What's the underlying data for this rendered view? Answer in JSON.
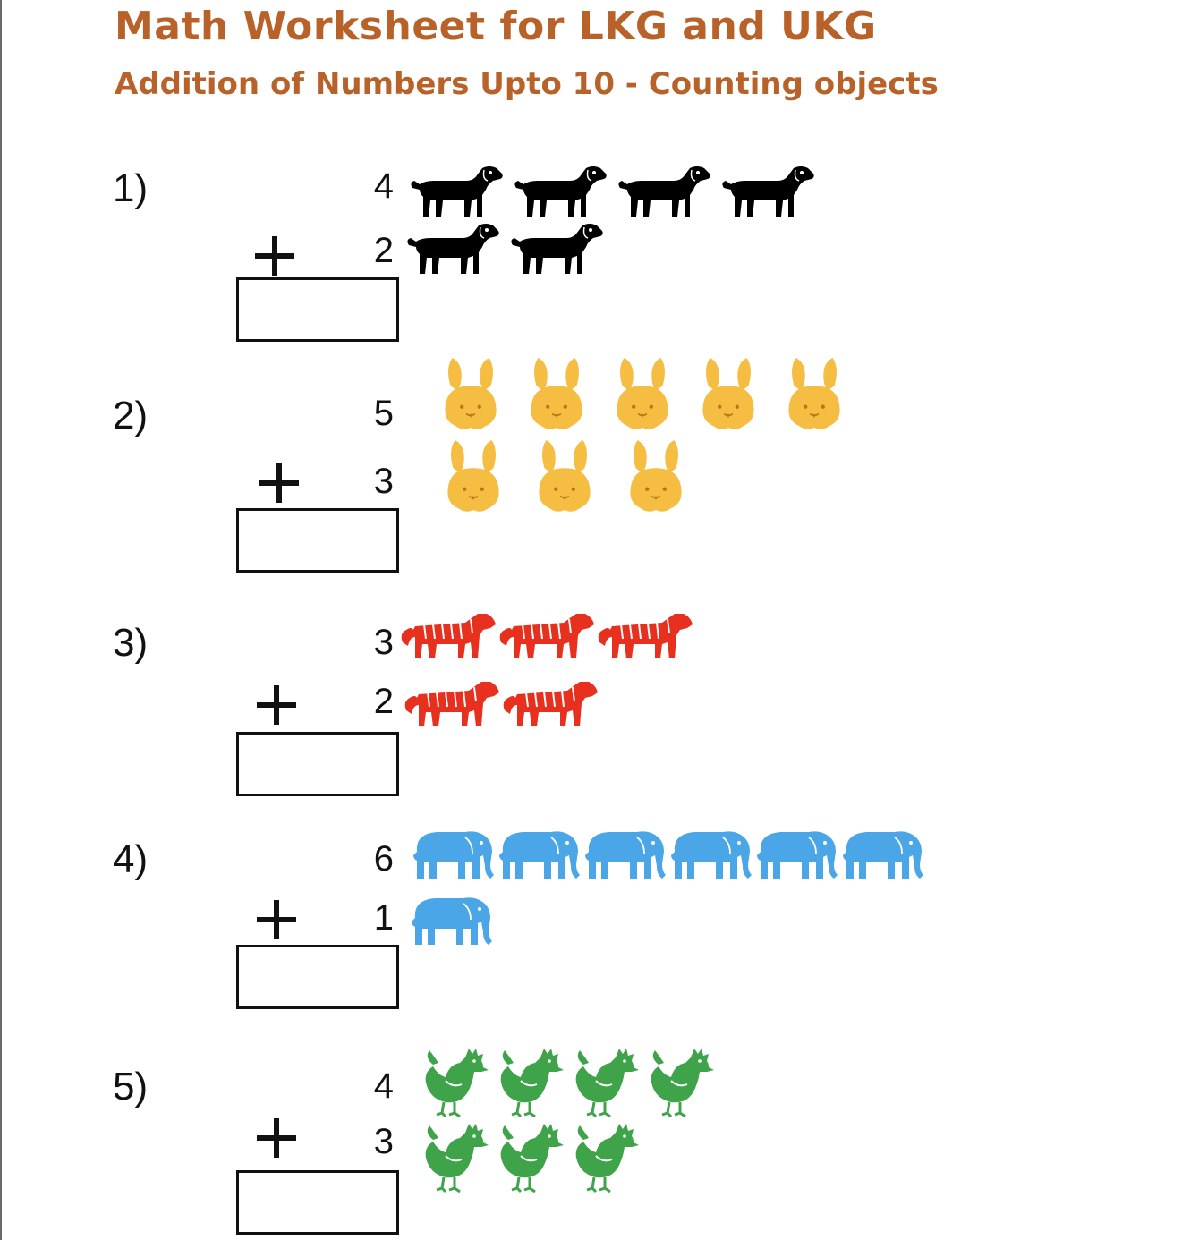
{
  "title": "Math Worksheet for LKG and UKG",
  "subtitle": "Addition of Numbers Upto 10 - Counting objects",
  "operator": "+",
  "problems": [
    {
      "label": "1)",
      "top": "4",
      "bottom": "2",
      "animal": "dog-icon",
      "color": "#000000"
    },
    {
      "label": "2)",
      "top": "5",
      "bottom": "3",
      "animal": "rabbit-icon",
      "color": "#f5bd42"
    },
    {
      "label": "3)",
      "top": "3",
      "bottom": "2",
      "animal": "tiger-icon",
      "color": "#e8301e"
    },
    {
      "label": "4)",
      "top": "6",
      "bottom": "1",
      "animal": "elephant-icon",
      "color": "#4ba6e8"
    },
    {
      "label": "5)",
      "top": "4",
      "bottom": "3",
      "animal": "rooster-icon",
      "color": "#3fa34a"
    }
  ]
}
